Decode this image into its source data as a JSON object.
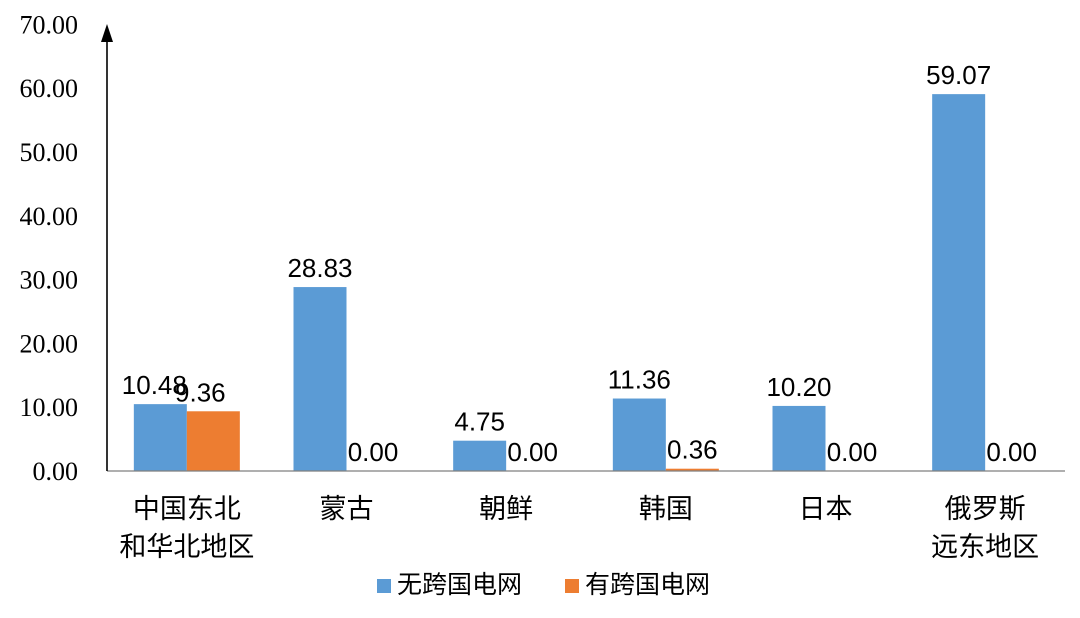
{
  "chart_data": {
    "type": "bar",
    "categories": [
      [
        "中国东北",
        "和华北地区"
      ],
      [
        "蒙古"
      ],
      [
        "朝鲜"
      ],
      [
        "韩国"
      ],
      [
        "日本"
      ],
      [
        "俄罗斯",
        "远东地区"
      ]
    ],
    "series": [
      {
        "name": "无跨国电网",
        "color": "#5B9BD5",
        "values": [
          10.48,
          28.83,
          4.75,
          11.36,
          10.2,
          59.07
        ],
        "labels": [
          "10.48",
          "28.83",
          "4.75",
          "11.36",
          "10.20",
          "59.07"
        ]
      },
      {
        "name": "有跨国电网",
        "color": "#ED7D31",
        "values": [
          9.36,
          0.0,
          0.0,
          0.36,
          0.0,
          0.0
        ],
        "labels": [
          "9.36",
          "0.00",
          "0.00",
          "0.36",
          "0.00",
          "0.00"
        ]
      }
    ],
    "ylim": [
      0,
      70
    ],
    "yticks": [
      "0.00",
      "10.00",
      "20.00",
      "30.00",
      "40.00",
      "50.00",
      "60.00",
      "70.00"
    ],
    "legend_position": "bottom-center",
    "grid": false
  }
}
